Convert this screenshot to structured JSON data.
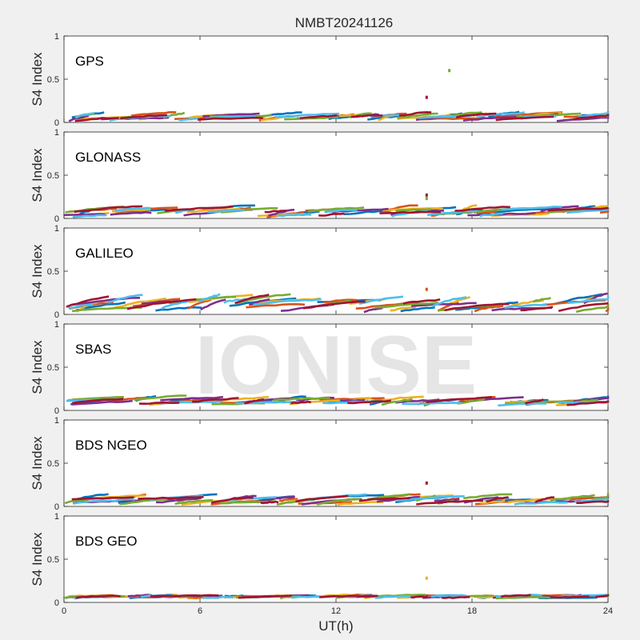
{
  "chart_data": {
    "type": "scatter",
    "title": "NMBT20241126",
    "xlabel": "UT(h)",
    "ylabel": "S4 Index",
    "xlim": [
      0,
      24
    ],
    "ylim": [
      0,
      1
    ],
    "x_ticks": [
      "0",
      "6",
      "12",
      "18",
      "24"
    ],
    "y_ticks": [
      "0",
      "0.5",
      "1"
    ],
    "watermark": "IONISE",
    "grid": false,
    "series_colors": [
      "#0072bd",
      "#d95319",
      "#edb120",
      "#7e2f8e",
      "#77ac30",
      "#4dbeee",
      "#a2142f"
    ],
    "panels": [
      {
        "label": "GPS",
        "baseline_range": [
          0.02,
          0.12
        ],
        "outliers": [
          {
            "x": 17.0,
            "y": 0.6,
            "color": "#77ac30"
          },
          {
            "x": 16.0,
            "y": 0.29,
            "color": "#a2142f"
          }
        ]
      },
      {
        "label": "GLONASS",
        "baseline_range": [
          0.02,
          0.15
        ],
        "outliers": [
          {
            "x": 16.0,
            "y": 0.27,
            "color": "#a2142f"
          },
          {
            "x": 16.0,
            "y": 0.23,
            "color": "#77ac30"
          }
        ]
      },
      {
        "label": "GALILEO",
        "baseline_range": [
          0.03,
          0.24
        ],
        "outliers": [
          {
            "x": 16.0,
            "y": 0.29,
            "color": "#d95319"
          }
        ]
      },
      {
        "label": "SBAS",
        "baseline_range": [
          0.06,
          0.17
        ],
        "outliers": []
      },
      {
        "label": "BDS NGEO",
        "baseline_range": [
          0.02,
          0.14
        ],
        "outliers": [
          {
            "x": 16.0,
            "y": 0.27,
            "color": "#a2142f"
          }
        ]
      },
      {
        "label": "BDS GEO",
        "baseline_range": [
          0.05,
          0.09
        ],
        "outliers": [
          {
            "x": 16.0,
            "y": 0.28,
            "color": "#edb120"
          }
        ]
      }
    ]
  }
}
